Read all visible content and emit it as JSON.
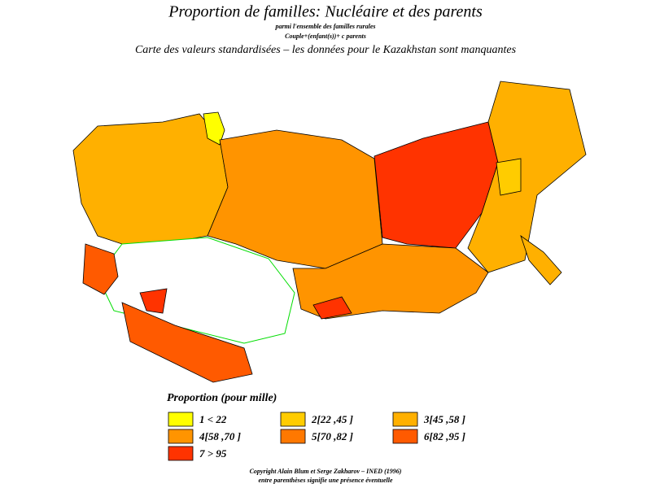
{
  "header": {
    "title": "Proportion de familles: Nucléaire et des parents",
    "subtitle": "parmi l'ensemble des familles rurales",
    "formula": "Couple+(enfant(s))+ c parents",
    "note": "Carte des valeurs standardisées – les données pour le Kazakhstan sont manquantes"
  },
  "legend": {
    "title": "Proportion (pour mille)",
    "items": [
      {
        "label": "1 <  22",
        "color": "#ffff00"
      },
      {
        "label": "2[22 ,45 ]",
        "color": "#ffcc00"
      },
      {
        "label": "3[45 ,58 ]",
        "color": "#ffb000"
      },
      {
        "label": "4[58 ,70 ]",
        "color": "#ff9400"
      },
      {
        "label": "5[70 ,82 ]",
        "color": "#ff7800"
      },
      {
        "label": "6[82 ,95 ]",
        "color": "#ff5a00"
      },
      {
        "label": "7  >  95",
        "color": "#ff3300"
      }
    ]
  },
  "footer": {
    "copyright": "Copyright Alain Blum et Serge Zakharov – INED (1996)",
    "note": "entre parenthèses signifie une présence éventuelle"
  }
}
